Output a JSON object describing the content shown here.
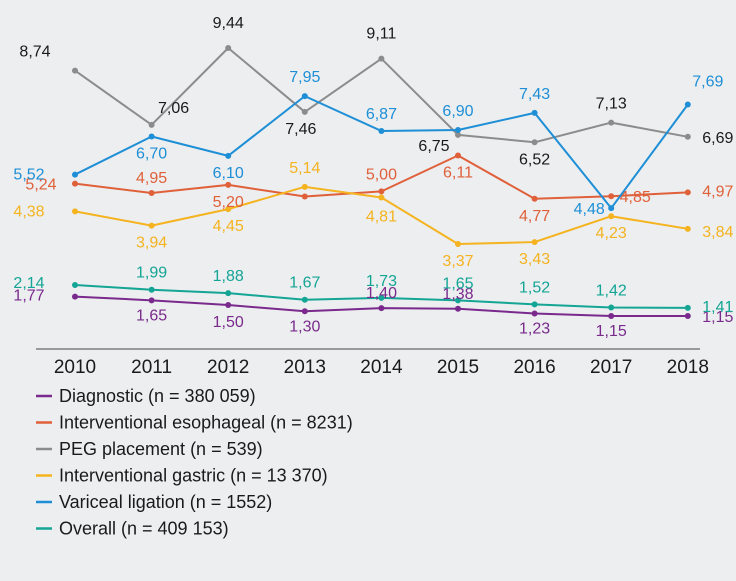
{
  "chart_data": {
    "type": "line",
    "categories": [
      "2010",
      "2011",
      "2012",
      "2013",
      "2014",
      "2015",
      "2016",
      "2017",
      "2018"
    ],
    "series": [
      {
        "name": "Diagnostic (n = 380 059)",
        "color": "#7a2a8c",
        "values": [
          1.77,
          1.65,
          1.5,
          1.3,
          1.4,
          1.38,
          1.23,
          1.15,
          1.15
        ],
        "labels": [
          "1,77",
          "1,65",
          "1,50",
          "1,30",
          "1,40",
          "1,38",
          "1,23",
          "1,15",
          "1,15"
        ]
      },
      {
        "name": "Interventional esophageal (n = 8231)",
        "color": "#e0603a",
        "values": [
          5.24,
          4.95,
          5.2,
          4.84,
          5.0,
          6.11,
          4.77,
          4.85,
          4.97
        ],
        "labels": [
          "5,24",
          "4,95",
          "5,20",
          "",
          "5,00",
          "6,11",
          "4,77",
          "4,85",
          "4,97"
        ]
      },
      {
        "name": "PEG placement (n = 539)",
        "color": "#8c8c8c",
        "values": [
          8.74,
          7.06,
          9.44,
          7.46,
          9.11,
          6.75,
          6.52,
          7.13,
          6.69
        ],
        "labels": [
          "8,74",
          "7,06",
          "9,44",
          "7,46",
          "9,11",
          "6,75",
          "6,52",
          "7,13",
          "6,69"
        ]
      },
      {
        "name": "Interventional gastric (n = 13 370)",
        "color": "#f5b31f",
        "values": [
          4.38,
          3.94,
          4.45,
          5.14,
          4.81,
          3.37,
          3.43,
          4.23,
          3.84
        ],
        "labels": [
          "4,38",
          "3,94",
          "4,45",
          "5,14",
          "4,81",
          "3,37",
          "3,43",
          "4,23",
          "3,84"
        ]
      },
      {
        "name": "Variceal ligation (n = 1552)",
        "color": "#1e8fd6",
        "values": [
          5.52,
          6.7,
          6.1,
          7.95,
          6.87,
          6.9,
          7.43,
          4.48,
          7.69
        ],
        "labels": [
          "5,52",
          "6,70",
          "6,10",
          "7,95",
          "6,87",
          "6,90",
          "7,43",
          "4,48",
          "7,69"
        ]
      },
      {
        "name": "Overall (n = 409 153)",
        "color": "#14a595",
        "values": [
          2.14,
          1.99,
          1.88,
          1.67,
          1.73,
          1.65,
          1.52,
          1.42,
          1.41
        ],
        "labels": [
          "2,14",
          "1,99",
          "1,88",
          "1,67",
          "1,73",
          "1,65",
          "1,52",
          "1,42",
          "1,41"
        ]
      }
    ],
    "xlabel": "",
    "ylabel": "",
    "grid": false,
    "legend": "bottom-left",
    "axis_color": "#9a9a9a"
  }
}
